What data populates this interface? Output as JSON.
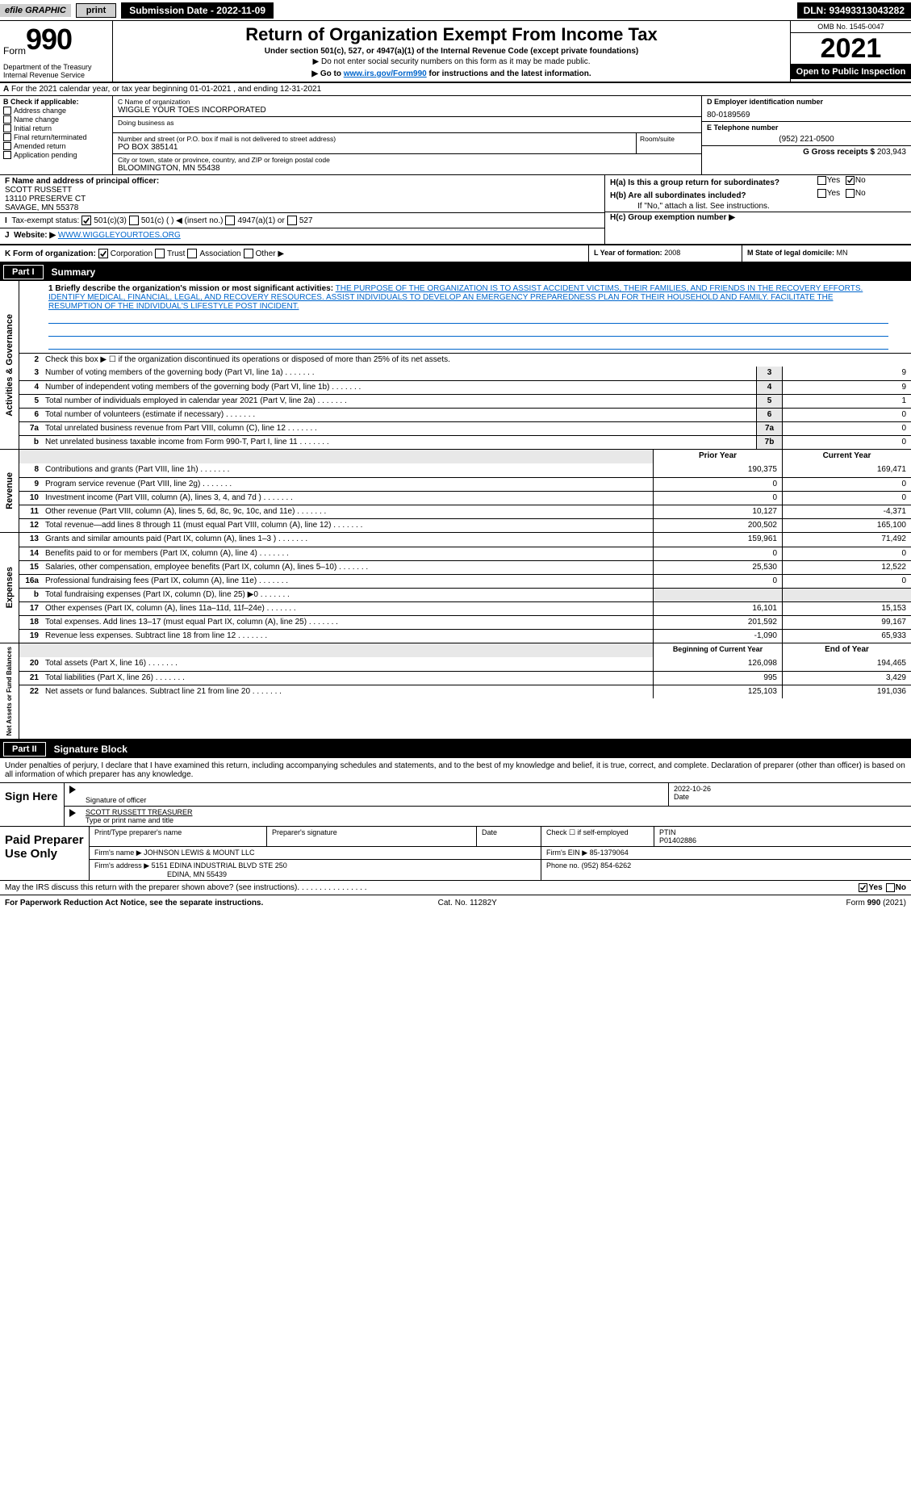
{
  "topbar": {
    "efile": "efile GRAPHIC",
    "print": "print",
    "submission": "Submission Date - 2022-11-09",
    "dln": "DLN: 93493313043282"
  },
  "header": {
    "form_prefix": "Form",
    "form_number": "990",
    "title": "Return of Organization Exempt From Income Tax",
    "subtitle": "Under section 501(c), 527, or 4947(a)(1) of the Internal Revenue Code (except private foundations)",
    "ssn_note": "▶ Do not enter social security numbers on this form as it may be made public.",
    "goto_pre": "▶ Go to ",
    "goto_link": "www.irs.gov/Form990",
    "goto_post": " for instructions and the latest information.",
    "dept": "Department of the Treasury",
    "irs": "Internal Revenue Service",
    "omb": "OMB No. 1545-0047",
    "year": "2021",
    "open": "Open to Public Inspection"
  },
  "lineA": "For the 2021 calendar year, or tax year beginning 01-01-2021    , and ending 12-31-2021",
  "boxB": {
    "title": "B Check if applicable:",
    "items": [
      "Address change",
      "Name change",
      "Initial return",
      "Final return/terminated",
      "Amended return",
      "Application pending"
    ]
  },
  "boxC": {
    "name_lbl": "C Name of organization",
    "name": "WIGGLE YOUR TOES INCORPORATED",
    "dba_lbl": "Doing business as",
    "dba": "",
    "street_lbl": "Number and street (or P.O. box if mail is not delivered to street address)",
    "room_lbl": "Room/suite",
    "street": "PO BOX 385141",
    "city_lbl": "City or town, state or province, country, and ZIP or foreign postal code",
    "city": "BLOOMINGTON, MN  55438"
  },
  "boxD": {
    "ein_lbl": "D Employer identification number",
    "ein": "80-0189569",
    "phone_lbl": "E Telephone number",
    "phone": "(952) 221-0500",
    "gross_lbl": "G Gross receipts $",
    "gross": "203,943"
  },
  "boxF": {
    "lbl": "F  Name and address of principal officer:",
    "name": "SCOTT RUSSETT",
    "addr1": "13110 PRESERVE CT",
    "addr2": "SAVAGE, MN  55378"
  },
  "boxH": {
    "a_lbl": "H(a)  Is this a group return for subordinates?",
    "b_lbl": "H(b)  Are all subordinates included?",
    "b_note": "If \"No,\" attach a list. See instructions.",
    "c_lbl": "H(c)  Group exemption number ▶",
    "yes": "Yes",
    "no": "No"
  },
  "taxstatus": {
    "lbl": "Tax-exempt status:",
    "o1": "501(c)(3)",
    "o2": "501(c) (    ) ◀ (insert no.)",
    "o3": "4947(a)(1) or",
    "o4": "527"
  },
  "lineJ": {
    "lbl": "Website: ▶",
    "val": "WWW.WIGGLEYOURTOES.ORG"
  },
  "lineK": {
    "lbl": "K Form of organization:",
    "o1": "Corporation",
    "o2": "Trust",
    "o3": "Association",
    "o4": "Other ▶"
  },
  "lineL": {
    "lbl": "L Year of formation:",
    "val": "2008"
  },
  "lineM": {
    "lbl": "M State of legal domicile:",
    "val": "MN"
  },
  "part1": {
    "num": "Part I",
    "title": "Summary"
  },
  "summary": {
    "q1_lbl": "1  Briefly describe the organization's mission or most significant activities:",
    "q1_txt": "THE PURPOSE OF THE ORGANIZATION IS TO ASSIST ACCIDENT VICTIMS, THEIR FAMILIES, AND FRIENDS IN THE RECOVERY EFFORTS. IDENTIFY MEDICAL, FINANCIAL, LEGAL, AND RECOVERY RESOURCES. ASSIST INDIVIDUALS TO DEVELOP AN EMERGENCY PREPAREDNESS PLAN FOR THEIR HOUSEHOLD AND FAMILY. FACILITATE THE RESUMPTION OF THE INDIVIDUAL'S LIFESTYLE POST INCIDENT.",
    "q2": "Check this box ▶ ☐  if the organization discontinued its operations or disposed of more than 25% of its net assets.",
    "lines_ag": [
      {
        "n": "3",
        "t": "Number of voting members of the governing body (Part VI, line 1a)",
        "c": "3",
        "v": "9"
      },
      {
        "n": "4",
        "t": "Number of independent voting members of the governing body (Part VI, line 1b)",
        "c": "4",
        "v": "9"
      },
      {
        "n": "5",
        "t": "Total number of individuals employed in calendar year 2021 (Part V, line 2a)",
        "c": "5",
        "v": "1"
      },
      {
        "n": "6",
        "t": "Total number of volunteers (estimate if necessary)",
        "c": "6",
        "v": "0"
      },
      {
        "n": "7a",
        "t": "Total unrelated business revenue from Part VIII, column (C), line 12",
        "c": "7a",
        "v": "0"
      },
      {
        "n": "b",
        "t": "Net unrelated business taxable income from Form 990-T, Part I, line 11",
        "c": "7b",
        "v": "0"
      }
    ],
    "py": "Prior Year",
    "cy": "Current Year",
    "rev": [
      {
        "n": "8",
        "t": "Contributions and grants (Part VIII, line 1h)",
        "p": "190,375",
        "c": "169,471"
      },
      {
        "n": "9",
        "t": "Program service revenue (Part VIII, line 2g)",
        "p": "0",
        "c": "0"
      },
      {
        "n": "10",
        "t": "Investment income (Part VIII, column (A), lines 3, 4, and 7d )",
        "p": "0",
        "c": "0"
      },
      {
        "n": "11",
        "t": "Other revenue (Part VIII, column (A), lines 5, 6d, 8c, 9c, 10c, and 11e)",
        "p": "10,127",
        "c": "-4,371"
      },
      {
        "n": "12",
        "t": "Total revenue—add lines 8 through 11 (must equal Part VIII, column (A), line 12)",
        "p": "200,502",
        "c": "165,100"
      }
    ],
    "exp": [
      {
        "n": "13",
        "t": "Grants and similar amounts paid (Part IX, column (A), lines 1–3 )",
        "p": "159,961",
        "c": "71,492"
      },
      {
        "n": "14",
        "t": "Benefits paid to or for members (Part IX, column (A), line 4)",
        "p": "0",
        "c": "0"
      },
      {
        "n": "15",
        "t": "Salaries, other compensation, employee benefits (Part IX, column (A), lines 5–10)",
        "p": "25,530",
        "c": "12,522"
      },
      {
        "n": "16a",
        "t": "Professional fundraising fees (Part IX, column (A), line 11e)",
        "p": "0",
        "c": "0"
      },
      {
        "n": "b",
        "t": "Total fundraising expenses (Part IX, column (D), line 25) ▶0",
        "p": "",
        "c": "",
        "shade": true
      },
      {
        "n": "17",
        "t": "Other expenses (Part IX, column (A), lines 11a–11d, 11f–24e)",
        "p": "16,101",
        "c": "15,153"
      },
      {
        "n": "18",
        "t": "Total expenses. Add lines 13–17 (must equal Part IX, column (A), line 25)",
        "p": "201,592",
        "c": "99,167"
      },
      {
        "n": "19",
        "t": "Revenue less expenses. Subtract line 18 from line 12",
        "p": "-1,090",
        "c": "65,933"
      }
    ],
    "boy": "Beginning of Current Year",
    "eoy": "End of Year",
    "net": [
      {
        "n": "20",
        "t": "Total assets (Part X, line 16)",
        "p": "126,098",
        "c": "194,465"
      },
      {
        "n": "21",
        "t": "Total liabilities (Part X, line 26)",
        "p": "995",
        "c": "3,429"
      },
      {
        "n": "22",
        "t": "Net assets or fund balances. Subtract line 21 from line 20",
        "p": "125,103",
        "c": "191,036"
      }
    ],
    "vtab_ag": "Activities & Governance",
    "vtab_rev": "Revenue",
    "vtab_exp": "Expenses",
    "vtab_net": "Net Assets or Fund Balances"
  },
  "part2": {
    "num": "Part II",
    "title": "Signature Block"
  },
  "sig": {
    "decl": "Under penalties of perjury, I declare that I have examined this return, including accompanying schedules and statements, and to the best of my knowledge and belief, it is true, correct, and complete. Declaration of preparer (other than officer) is based on all information of which preparer has any knowledge.",
    "sign": "Sign Here",
    "sig_officer": "Signature of officer",
    "date_lbl": "Date",
    "date": "2022-10-26",
    "officer_name": "SCOTT RUSSETT TREASURER",
    "type_name": "Type or print name and title",
    "paid": "Paid Preparer Use Only",
    "prep_name_lbl": "Print/Type preparer's name",
    "prep_sig_lbl": "Preparer's signature",
    "check_lbl": "Check ☐ if self-employed",
    "ptin_lbl": "PTIN",
    "ptin": "P01402886",
    "firm_name_lbl": "Firm's name    ▶",
    "firm_name": "JOHNSON LEWIS & MOUNT LLC",
    "firm_ein_lbl": "Firm's EIN ▶",
    "firm_ein": "85-1379064",
    "firm_addr_lbl": "Firm's address ▶",
    "firm_addr1": "5151 EDINA INDUSTRIAL BLVD STE 250",
    "firm_addr2": "EDINA, MN  55439",
    "phone_lbl": "Phone no.",
    "phone": "(952) 854-6262",
    "may": "May the IRS discuss this return with the preparer shown above? (see instructions)"
  },
  "footer": {
    "pra": "For Paperwork Reduction Act Notice, see the separate instructions.",
    "cat": "Cat. No. 11282Y",
    "form": "Form 990 (2021)"
  }
}
